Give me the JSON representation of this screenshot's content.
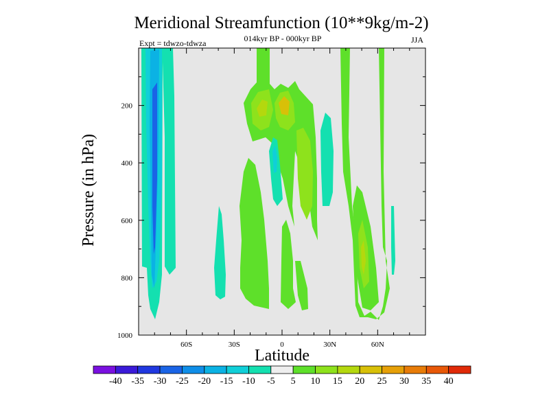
{
  "chart_data": {
    "type": "contour",
    "title": "Meridional Streamfunction (10**9kg/m-2)",
    "subtitle": "014kyr BP - 000kyr BP",
    "experiment": "Expt = tdwzo-tdwza",
    "season": "JJA",
    "xlabel": "Latitude",
    "ylabel": "Pressure (in hPa)",
    "xlim": [
      -90,
      90
    ],
    "ylim": [
      1000,
      0
    ],
    "x_ticks": [
      -60,
      -30,
      0,
      30,
      60
    ],
    "x_tick_labels": [
      "60S",
      "30S",
      "0",
      "30N",
      "60N"
    ],
    "y_ticks": [
      200,
      400,
      600,
      800,
      1000
    ],
    "y_tick_labels": [
      "200",
      "400",
      "600",
      "800",
      "1000"
    ],
    "colorbar": {
      "levels": [
        -40,
        -35,
        -30,
        -25,
        -20,
        -15,
        -10,
        -5,
        5,
        10,
        15,
        20,
        25,
        30,
        35,
        40
      ],
      "labels": [
        "-40",
        "-35",
        "-30",
        "-25",
        "-20",
        "-15",
        "-10",
        "-5",
        "5",
        "10",
        "15",
        "20",
        "25",
        "30",
        "35",
        "40"
      ],
      "colors": [
        "#7a10e0",
        "#3a1ad8",
        "#2038e0",
        "#1a64e6",
        "#0f8ee8",
        "#0bb2e4",
        "#10cfd8",
        "#14e0b0",
        "#eeeeee",
        "#5ee02a",
        "#8ee21c",
        "#b4d80e",
        "#d8c008",
        "#e6a008",
        "#e87c08",
        "#e85808",
        "#e02a08"
      ]
    },
    "regions": [
      {
        "level": -10,
        "lat": [
          -90,
          -78
        ],
        "p": [
          10,
          760
        ],
        "note": "negative cell near 70-80S"
      },
      {
        "level": -20,
        "lat": [
          -80,
          -74
        ],
        "p": [
          10,
          900
        ],
        "note": "core of southern negative cell"
      },
      {
        "level": -10,
        "lat": [
          -40,
          -36
        ],
        "p": [
          520,
          880
        ],
        "note": "weak negative patch"
      },
      {
        "level": 10,
        "lat": [
          -26,
          0
        ],
        "p": [
          0,
          990
        ],
        "note": "tropical positive cell"
      },
      {
        "level": 20,
        "lat": [
          -18,
          5
        ],
        "p": [
          150,
          240
        ],
        "note": "upper tropical maximum"
      },
      {
        "level": -10,
        "lat": [
          -9,
          -2
        ],
        "p": [
          300,
          540
        ],
        "note": "small negative patch"
      },
      {
        "level": 15,
        "lat": [
          10,
          18
        ],
        "p": [
          300,
          560
        ],
        "note": "positive lobe"
      },
      {
        "level": -10,
        "lat": [
          25,
          31
        ],
        "p": [
          250,
          470
        ],
        "note": "negative patch"
      },
      {
        "level": 10,
        "lat": [
          46,
          66
        ],
        "p": [
          0,
          960
        ],
        "note": "northern positive cell"
      },
      {
        "level": 15,
        "lat": [
          50,
          57
        ],
        "p": [
          600,
          860
        ],
        "note": "northern core"
      },
      {
        "level": -10,
        "lat": [
          69,
          71
        ],
        "p": [
          580,
          800
        ],
        "note": "small negative patch"
      }
    ]
  }
}
